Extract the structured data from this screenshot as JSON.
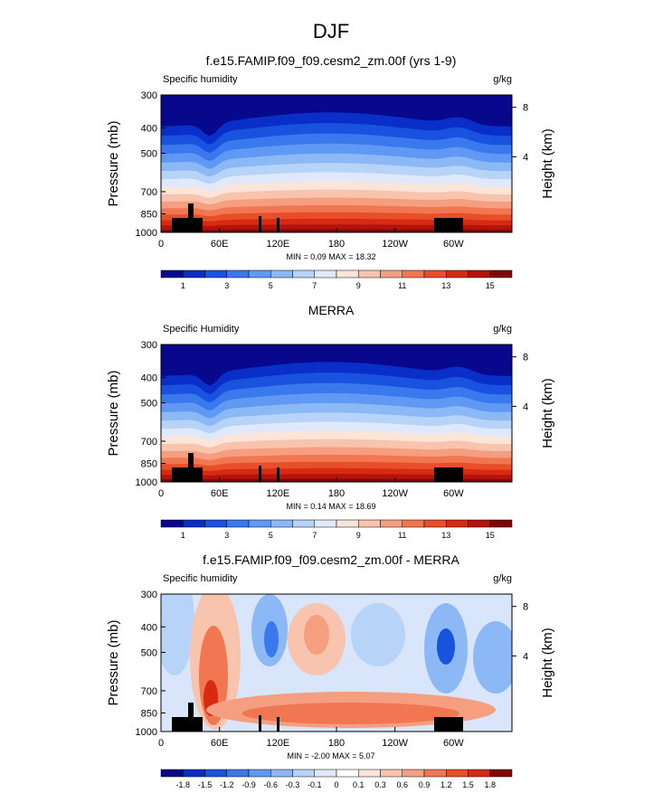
{
  "page_title": "DJF",
  "chart_data": [
    {
      "type": "heatmap",
      "title": "f.e15.FAMIP.f09_f09.cesm2_zm.00f (yrs 1-9)",
      "left_label": "Specific humidity",
      "units": "g/kg",
      "ylabel": "Pressure (mb)",
      "y2label": "Height (km)",
      "xticks": [
        "0",
        "60E",
        "120E",
        "180",
        "120W",
        "60W"
      ],
      "yticks": [
        "300",
        "400",
        "500",
        "700",
        "850",
        "1000"
      ],
      "y2ticks": [
        "8",
        "4"
      ],
      "minmax": "MIN =  0.09  MAX =  18.32",
      "colorbar_labels": [
        "1",
        "3",
        "5",
        "7",
        "9",
        "11",
        "13",
        "15"
      ],
      "colors": [
        "#08088c",
        "#0a2fc8",
        "#1a52e0",
        "#3a78ee",
        "#5f99f4",
        "#8cb8f6",
        "#b7d3f8",
        "#dfe9fb",
        "#fbe4d8",
        "#f9c4ad",
        "#f69f80",
        "#f17752",
        "#e84e2a",
        "#d72a12",
        "#b4130b",
        "#7e0707"
      ]
    },
    {
      "type": "heatmap",
      "title": "MERRA",
      "left_label": "Specific Humidity",
      "units": "g/kg",
      "ylabel": "Pressure (mb)",
      "y2label": "Height (km)",
      "xticks": [
        "0",
        "60E",
        "120E",
        "180",
        "120W",
        "60W"
      ],
      "yticks": [
        "300",
        "400",
        "500",
        "700",
        "850",
        "1000"
      ],
      "y2ticks": [
        "8",
        "4"
      ],
      "minmax": "MIN =  0.14  MAX =  18.69",
      "colorbar_labels": [
        "1",
        "3",
        "5",
        "7",
        "9",
        "11",
        "13",
        "15"
      ],
      "colors": [
        "#08088c",
        "#0a2fc8",
        "#1a52e0",
        "#3a78ee",
        "#5f99f4",
        "#8cb8f6",
        "#b7d3f8",
        "#dfe9fb",
        "#fbe4d8",
        "#f9c4ad",
        "#f69f80",
        "#f17752",
        "#e84e2a",
        "#d72a12",
        "#b4130b",
        "#7e0707"
      ]
    },
    {
      "type": "heatmap",
      "title": "f.e15.FAMIP.f09_f09.cesm2_zm.00f - MERRA",
      "left_label": "Specific humidity",
      "units": "g/kg",
      "ylabel": "Pressure (mb)",
      "y2label": "Height (km)",
      "xticks": [
        "0",
        "60E",
        "120E",
        "180",
        "120W",
        "60W"
      ],
      "yticks": [
        "300",
        "400",
        "500",
        "700",
        "850",
        "1000"
      ],
      "y2ticks": [
        "8",
        "4"
      ],
      "minmax": "MIN = -2.00  MAX =  5.07",
      "colorbar_labels": [
        "-1.8",
        "-1.5",
        "-1.2",
        "-0.9",
        "-0.6",
        "-0.3",
        "-0.1",
        "0",
        "0.1",
        "0.3",
        "0.6",
        "0.9",
        "1.2",
        "1.5",
        "1.8"
      ],
      "colors": [
        "#08088c",
        "#0a2fc8",
        "#1a52e0",
        "#3a78ee",
        "#5f99f4",
        "#8cb8f6",
        "#b7d3f8",
        "#dfe9fb",
        "#ffffff",
        "#fbe4d8",
        "#f9c4ad",
        "#f69f80",
        "#f17752",
        "#e84e2a",
        "#d72a12",
        "#7e0707"
      ]
    }
  ]
}
